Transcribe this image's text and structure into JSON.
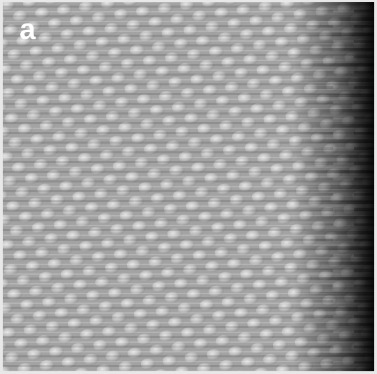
{
  "panel_label": "a"
}
